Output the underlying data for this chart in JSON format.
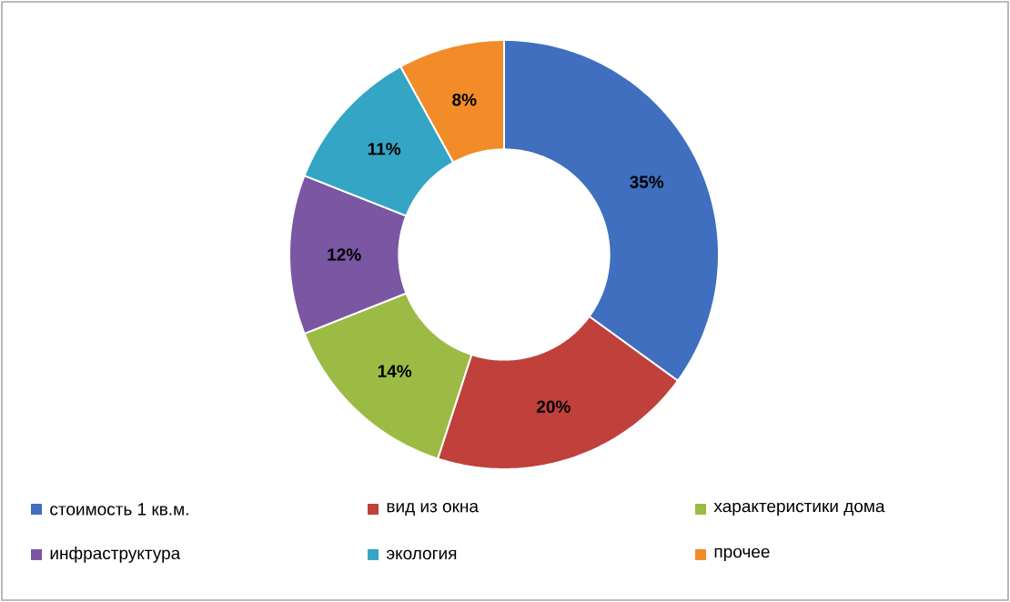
{
  "chart_data": {
    "type": "donut",
    "categories": [
      "стоимость 1 кв.м.",
      "вид из окна",
      "характеристики дома",
      "инфраструктура",
      "экология",
      "прочее"
    ],
    "values": [
      35,
      20,
      14,
      12,
      11,
      8
    ],
    "value_labels": [
      "35%",
      "20%",
      "14%",
      "12%",
      "11%",
      "8%"
    ],
    "colors": [
      "#3f6fbe",
      "#c0403c",
      "#9bbb45",
      "#7b56a2",
      "#34a5c4",
      "#f28c28"
    ],
    "legend": "bottom"
  }
}
